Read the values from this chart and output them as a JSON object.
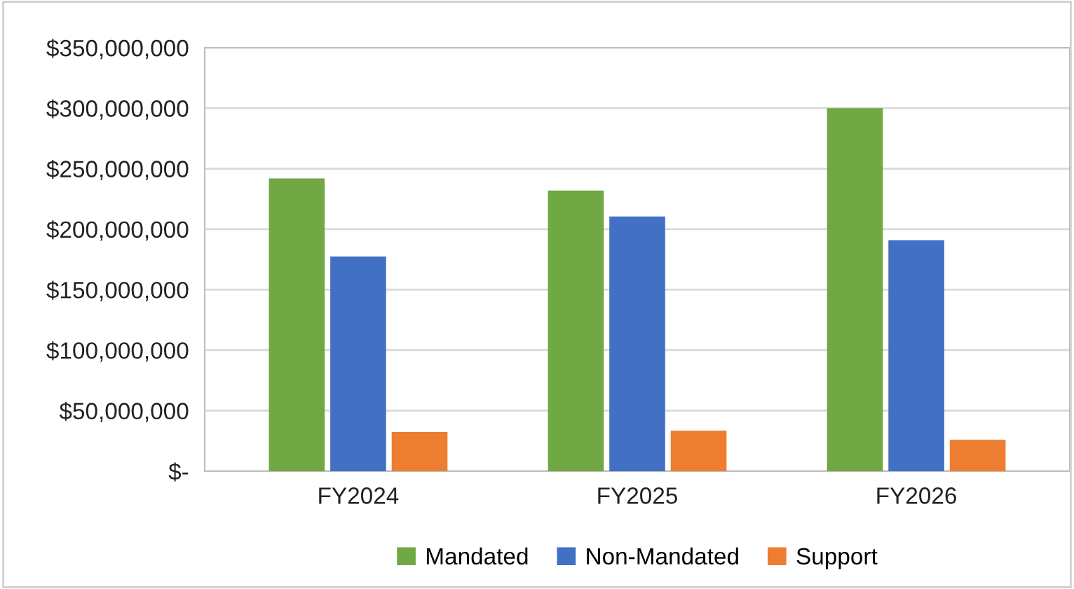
{
  "chart_data": {
    "type": "bar",
    "categories": [
      "FY2024",
      "FY2025",
      "FY2026"
    ],
    "series": [
      {
        "name": "Mandated",
        "color": "#70a844",
        "values": [
          242000000,
          232000000,
          300000000
        ]
      },
      {
        "name": "Non-Mandated",
        "color": "#4270c4",
        "values": [
          177500000,
          210500000,
          191000000
        ]
      },
      {
        "name": "Support",
        "color": "#ed7d31",
        "values": [
          32500000,
          33500000,
          26000000
        ]
      }
    ],
    "ylim": [
      0,
      350000000
    ],
    "yticks": [
      {
        "value": 0,
        "label": "$-"
      },
      {
        "value": 50000000,
        "label": "$50,000,000"
      },
      {
        "value": 100000000,
        "label": "$100,000,000"
      },
      {
        "value": 150000000,
        "label": "$150,000,000"
      },
      {
        "value": 200000000,
        "label": "$200,000,000"
      },
      {
        "value": 250000000,
        "label": "$250,000,000"
      },
      {
        "value": 300000000,
        "label": "$300,000,000"
      },
      {
        "value": 350000000,
        "label": "$350,000,000"
      }
    ],
    "grid": "y",
    "legend": "bottom"
  }
}
